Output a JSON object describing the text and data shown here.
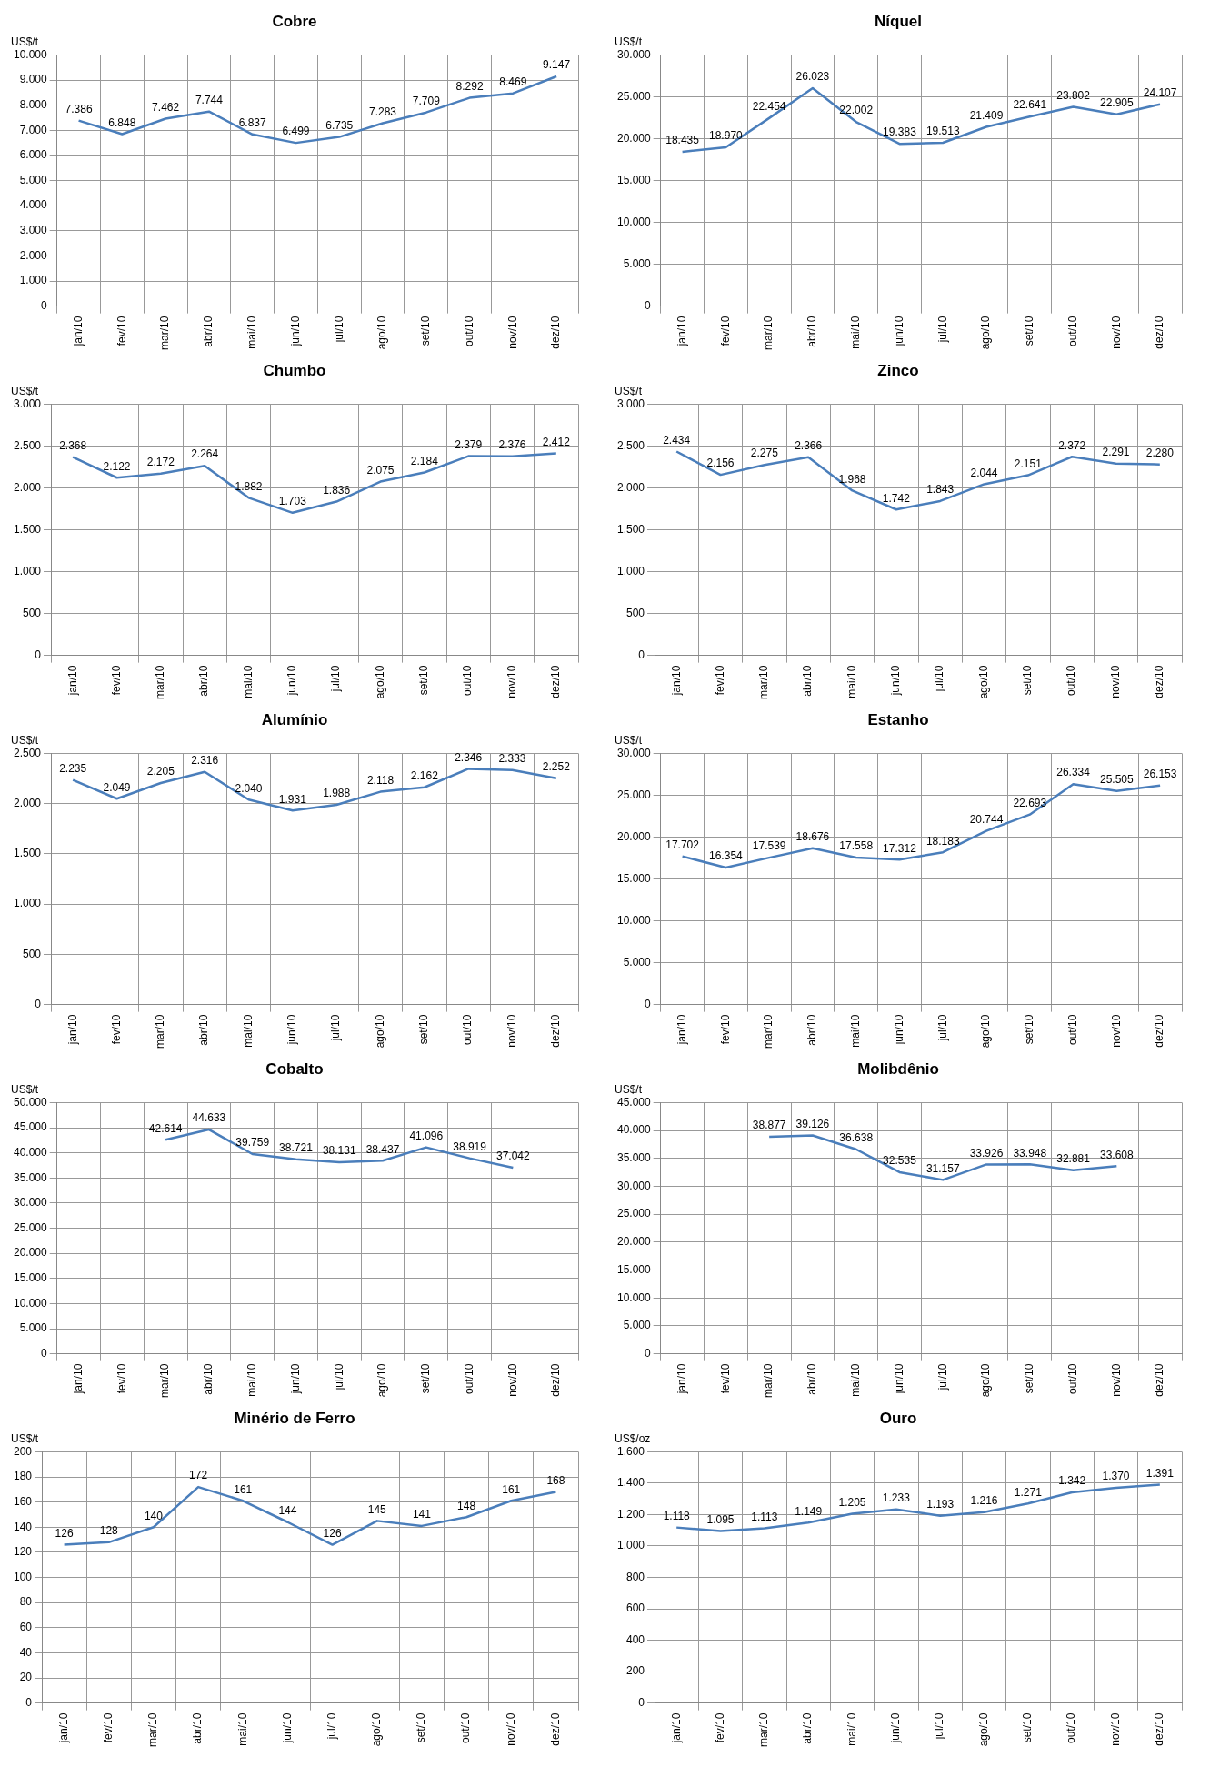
{
  "chart_data": [
    {
      "type": "line",
      "title": "Cobre",
      "ylabel": "US$/t",
      "categories": [
        "jan/10",
        "fev/10",
        "mar/10",
        "abr/10",
        "mai/10",
        "jun/10",
        "jul/10",
        "ago/10",
        "set/10",
        "out/10",
        "nov/10",
        "dez/10"
      ],
      "series": [
        {
          "color": "#4a7ebb",
          "values": [
            7386,
            6848,
            7462,
            7744,
            6837,
            6499,
            6735,
            7283,
            7709,
            8292,
            8469,
            9147
          ],
          "value_labels": [
            "7.386",
            "6.848",
            "7.462",
            "7.744",
            "6.837",
            "6.499",
            "6.735",
            "7.283",
            "7.709",
            "8.292",
            "8.469",
            "9.147"
          ]
        }
      ],
      "ylim": [
        0,
        10000
      ],
      "yticks": [
        0,
        {
          "value": 1000,
          "label": "1.000"
        },
        {
          "value": 2000,
          "label": "2.000"
        },
        {
          "value": 3000,
          "label": "3.000"
        },
        {
          "value": 4000,
          "label": "4.000"
        },
        {
          "value": 5000,
          "label": "5.000"
        },
        {
          "value": 6000,
          "label": "6.000"
        },
        {
          "value": 7000,
          "label": "7.000"
        },
        {
          "value": 8000,
          "label": "8.000"
        },
        {
          "value": 9000,
          "label": "9.000"
        },
        {
          "value": 10000,
          "label": "10.000"
        }
      ],
      "grid": true,
      "legend": false
    },
    {
      "type": "line",
      "title": "Níquel",
      "ylabel": "US$/t",
      "categories": [
        "jan/10",
        "fev/10",
        "mar/10",
        "abr/10",
        "mai/10",
        "jun/10",
        "jul/10",
        "ago/10",
        "set/10",
        "out/10",
        "nov/10",
        "dez/10"
      ],
      "series": [
        {
          "color": "#4a7ebb",
          "values": [
            18435,
            18970,
            22454,
            26023,
            22002,
            19383,
            19513,
            21409,
            22641,
            23802,
            22905,
            24107
          ],
          "value_labels": [
            "18.435",
            "18.970",
            "22.454",
            "26.023",
            "22.002",
            "19.383",
            "19.513",
            "21.409",
            "22.641",
            "23.802",
            "22.905",
            "24.107"
          ]
        }
      ],
      "ylim": [
        0,
        30000
      ],
      "yticks": [
        0,
        {
          "value": 5000,
          "label": "5.000"
        },
        {
          "value": 10000,
          "label": "10.000"
        },
        {
          "value": 15000,
          "label": "15.000"
        },
        {
          "value": 20000,
          "label": "20.000"
        },
        {
          "value": 25000,
          "label": "25.000"
        },
        {
          "value": 30000,
          "label": "30.000"
        }
      ],
      "grid": true,
      "legend": false
    },
    {
      "type": "line",
      "title": "Chumbo",
      "ylabel": "US$/t",
      "categories": [
        "jan/10",
        "fev/10",
        "mar/10",
        "abr/10",
        "mai/10",
        "jun/10",
        "jul/10",
        "ago/10",
        "set/10",
        "out/10",
        "nov/10",
        "dez/10"
      ],
      "series": [
        {
          "color": "#4a7ebb",
          "values": [
            2368,
            2122,
            2172,
            2264,
            1882,
            1703,
            1836,
            2075,
            2184,
            2379,
            2376,
            2412
          ],
          "value_labels": [
            "2.368",
            "2.122",
            "2.172",
            "2.264",
            "1.882",
            "1.703",
            "1.836",
            "2.075",
            "2.184",
            "2.379",
            "2.376",
            "2.412"
          ]
        }
      ],
      "ylim": [
        0,
        3000
      ],
      "yticks": [
        0,
        500,
        {
          "value": 1000,
          "label": "1.000"
        },
        {
          "value": 1500,
          "label": "1.500"
        },
        {
          "value": 2000,
          "label": "2.000"
        },
        {
          "value": 2500,
          "label": "2.500"
        },
        {
          "value": 3000,
          "label": "3.000"
        }
      ],
      "grid": true,
      "legend": false
    },
    {
      "type": "line",
      "title": "Zinco",
      "ylabel": "US$/t",
      "categories": [
        "jan/10",
        "fev/10",
        "mar/10",
        "abr/10",
        "mai/10",
        "jun/10",
        "jul/10",
        "ago/10",
        "set/10",
        "out/10",
        "nov/10",
        "dez/10"
      ],
      "series": [
        {
          "color": "#4a7ebb",
          "values": [
            2434,
            2156,
            2275,
            2366,
            1968,
            1742,
            1843,
            2044,
            2151,
            2372,
            2291,
            2280
          ],
          "value_labels": [
            "2.434",
            "2.156",
            "2.275",
            "2.366",
            "1.968",
            "1.742",
            "1.843",
            "2.044",
            "2.151",
            "2.372",
            "2.291",
            "2.280"
          ]
        }
      ],
      "ylim": [
        0,
        3000
      ],
      "yticks": [
        0,
        500,
        {
          "value": 1000,
          "label": "1.000"
        },
        {
          "value": 1500,
          "label": "1.500"
        },
        {
          "value": 2000,
          "label": "2.000"
        },
        {
          "value": 2500,
          "label": "2.500"
        },
        {
          "value": 3000,
          "label": "3.000"
        }
      ],
      "grid": true,
      "legend": false
    },
    {
      "type": "line",
      "title": "Alumínio",
      "ylabel": "US$/t",
      "categories": [
        "jan/10",
        "fev/10",
        "mar/10",
        "abr/10",
        "mai/10",
        "jun/10",
        "jul/10",
        "ago/10",
        "set/10",
        "out/10",
        "nov/10",
        "dez/10"
      ],
      "series": [
        {
          "color": "#4a7ebb",
          "values": [
            2235,
            2049,
            2205,
            2316,
            2040,
            1931,
            1988,
            2118,
            2162,
            2346,
            2333,
            2252
          ],
          "value_labels": [
            "2.235",
            "2.049",
            "2.205",
            "2.316",
            "2.040",
            "1.931",
            "1.988",
            "2.118",
            "2.162",
            "2.346",
            "2.333",
            "2.252"
          ]
        }
      ],
      "ylim": [
        0,
        2500
      ],
      "yticks": [
        0,
        500,
        {
          "value": 1000,
          "label": "1.000"
        },
        {
          "value": 1500,
          "label": "1.500"
        },
        {
          "value": 2000,
          "label": "2.000"
        },
        {
          "value": 2500,
          "label": "2.500"
        }
      ],
      "grid": true,
      "legend": false
    },
    {
      "type": "line",
      "title": "Estanho",
      "ylabel": "US$/t",
      "categories": [
        "jan/10",
        "fev/10",
        "mar/10",
        "abr/10",
        "mai/10",
        "jun/10",
        "jul/10",
        "ago/10",
        "set/10",
        "out/10",
        "nov/10",
        "dez/10"
      ],
      "series": [
        {
          "color": "#4a7ebb",
          "values": [
            17702,
            16354,
            17539,
            18676,
            17558,
            17312,
            18183,
            20744,
            22693,
            26334,
            25505,
            26153
          ],
          "value_labels": [
            "17.702",
            "16.354",
            "17.539",
            "18.676",
            "17.558",
            "17.312",
            "18.183",
            "20.744",
            "22.693",
            "26.334",
            "25.505",
            "26.153"
          ]
        }
      ],
      "ylim": [
        0,
        30000
      ],
      "yticks": [
        0,
        {
          "value": 5000,
          "label": "5.000"
        },
        {
          "value": 10000,
          "label": "10.000"
        },
        {
          "value": 15000,
          "label": "15.000"
        },
        {
          "value": 20000,
          "label": "20.000"
        },
        {
          "value": 25000,
          "label": "25.000"
        },
        {
          "value": 30000,
          "label": "30.000"
        }
      ],
      "grid": true,
      "legend": false
    },
    {
      "type": "line",
      "title": "Cobalto",
      "ylabel": "US$/t",
      "categories": [
        "jan/10",
        "fev/10",
        "mar/10",
        "abr/10",
        "mai/10",
        "jun/10",
        "jul/10",
        "ago/10",
        "set/10",
        "out/10",
        "nov/10",
        "dez/10"
      ],
      "series": [
        {
          "color": "#4a7ebb",
          "values": [
            null,
            null,
            42614,
            44633,
            39759,
            38721,
            38131,
            38437,
            41096,
            38919,
            37042,
            null
          ],
          "value_labels": [
            null,
            null,
            "42.614",
            "44.633",
            "39.759",
            "38.721",
            "38.131",
            "38.437",
            "41.096",
            "38.919",
            "37.042",
            null
          ]
        }
      ],
      "ylim": [
        0,
        50000
      ],
      "yticks": [
        0,
        {
          "value": 5000,
          "label": "5.000"
        },
        {
          "value": 10000,
          "label": "10.000"
        },
        {
          "value": 15000,
          "label": "15.000"
        },
        {
          "value": 20000,
          "label": "20.000"
        },
        {
          "value": 25000,
          "label": "25.000"
        },
        {
          "value": 30000,
          "label": "30.000"
        },
        {
          "value": 35000,
          "label": "35.000"
        },
        {
          "value": 40000,
          "label": "40.000"
        },
        {
          "value": 45000,
          "label": "45.000"
        },
        {
          "value": 50000,
          "label": "50.000"
        }
      ],
      "grid": true,
      "legend": false
    },
    {
      "type": "line",
      "title": "Molibdênio",
      "ylabel": "US$/t",
      "categories": [
        "jan/10",
        "fev/10",
        "mar/10",
        "abr/10",
        "mai/10",
        "jun/10",
        "jul/10",
        "ago/10",
        "set/10",
        "out/10",
        "nov/10",
        "dez/10"
      ],
      "series": [
        {
          "color": "#4a7ebb",
          "values": [
            null,
            null,
            38877,
            39126,
            36638,
            32535,
            31157,
            33926,
            33948,
            32881,
            33608,
            null
          ],
          "value_labels": [
            null,
            null,
            "38.877",
            "39.126",
            "36.638",
            "32.535",
            "31.157",
            "33.926",
            "33.948",
            "32.881",
            "33.608",
            null
          ]
        }
      ],
      "ylim": [
        0,
        45000
      ],
      "yticks": [
        0,
        {
          "value": 5000,
          "label": "5.000"
        },
        {
          "value": 10000,
          "label": "10.000"
        },
        {
          "value": 15000,
          "label": "15.000"
        },
        {
          "value": 20000,
          "label": "20.000"
        },
        {
          "value": 25000,
          "label": "25.000"
        },
        {
          "value": 30000,
          "label": "30.000"
        },
        {
          "value": 35000,
          "label": "35.000"
        },
        {
          "value": 40000,
          "label": "40.000"
        },
        {
          "value": 45000,
          "label": "45.000"
        }
      ],
      "grid": true,
      "legend": false
    },
    {
      "type": "line",
      "title": "Minério de Ferro",
      "ylabel": "US$/t",
      "categories": [
        "jan/10",
        "fev/10",
        "mar/10",
        "abr/10",
        "mai/10",
        "jun/10",
        "jul/10",
        "ago/10",
        "set/10",
        "out/10",
        "nov/10",
        "dez/10"
      ],
      "series": [
        {
          "color": "#4a7ebb",
          "values": [
            126,
            128,
            140,
            172,
            161,
            144,
            126,
            145,
            141,
            148,
            161,
            168
          ]
        }
      ],
      "data_labels": true,
      "ylim": [
        0,
        200
      ],
      "yticks": [
        0,
        20,
        40,
        60,
        80,
        100,
        120,
        140,
        160,
        180,
        200
      ],
      "grid": true,
      "legend": false
    },
    {
      "type": "line",
      "title": "Ouro",
      "ylabel": "US$/oz",
      "categories": [
        "jan/10",
        "fev/10",
        "mar/10",
        "abr/10",
        "mai/10",
        "jun/10",
        "jul/10",
        "ago/10",
        "set/10",
        "out/10",
        "nov/10",
        "dez/10"
      ],
      "series": [
        {
          "color": "#4a7ebb",
          "values": [
            1118,
            1095,
            1113,
            1149,
            1205,
            1233,
            1193,
            1216,
            1271,
            1342,
            1370,
            1391
          ],
          "value_labels": [
            "1.118",
            "1.095",
            "1.113",
            "1.149",
            "1.205",
            "1.233",
            "1.193",
            "1.216",
            "1.271",
            "1.342",
            "1.370",
            "1.391"
          ]
        }
      ],
      "ylim": [
        0,
        1600
      ],
      "yticks": [
        0,
        200,
        400,
        600,
        800,
        {
          "value": 1000,
          "label": "1.000"
        },
        {
          "value": 1200,
          "label": "1.200"
        },
        {
          "value": 1400,
          "label": "1.400"
        },
        {
          "value": 1600,
          "label": "1.600"
        }
      ],
      "grid": true,
      "legend": false
    }
  ]
}
